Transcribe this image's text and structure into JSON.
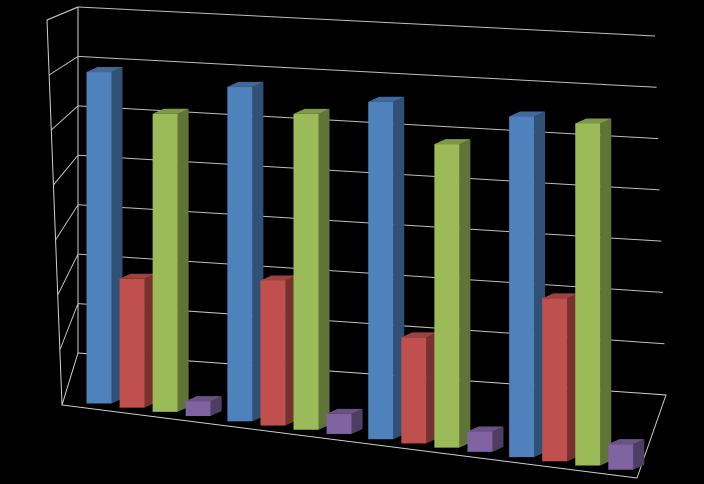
{
  "chart_data": {
    "type": "bar",
    "style": "3d-clustered-column",
    "categories": [
      "",
      "",
      "",
      ""
    ],
    "series": [
      {
        "color": "#4F81BD",
        "values": [
          6.7,
          6.7,
          6.7,
          6.7
        ]
      },
      {
        "color": "#C0504D",
        "values": [
          2.6,
          2.9,
          2.1,
          3.2
        ]
      },
      {
        "color": "#9BBB59",
        "values": [
          6.0,
          6.3,
          6.0,
          6.7
        ]
      },
      {
        "color": "#8064A2",
        "values": [
          0.3,
          0.4,
          0.4,
          0.5
        ]
      }
    ],
    "ylim": [
      0,
      7
    ],
    "grid": true,
    "legend": "none",
    "title": "",
    "xlabel": "",
    "ylabel": ""
  }
}
